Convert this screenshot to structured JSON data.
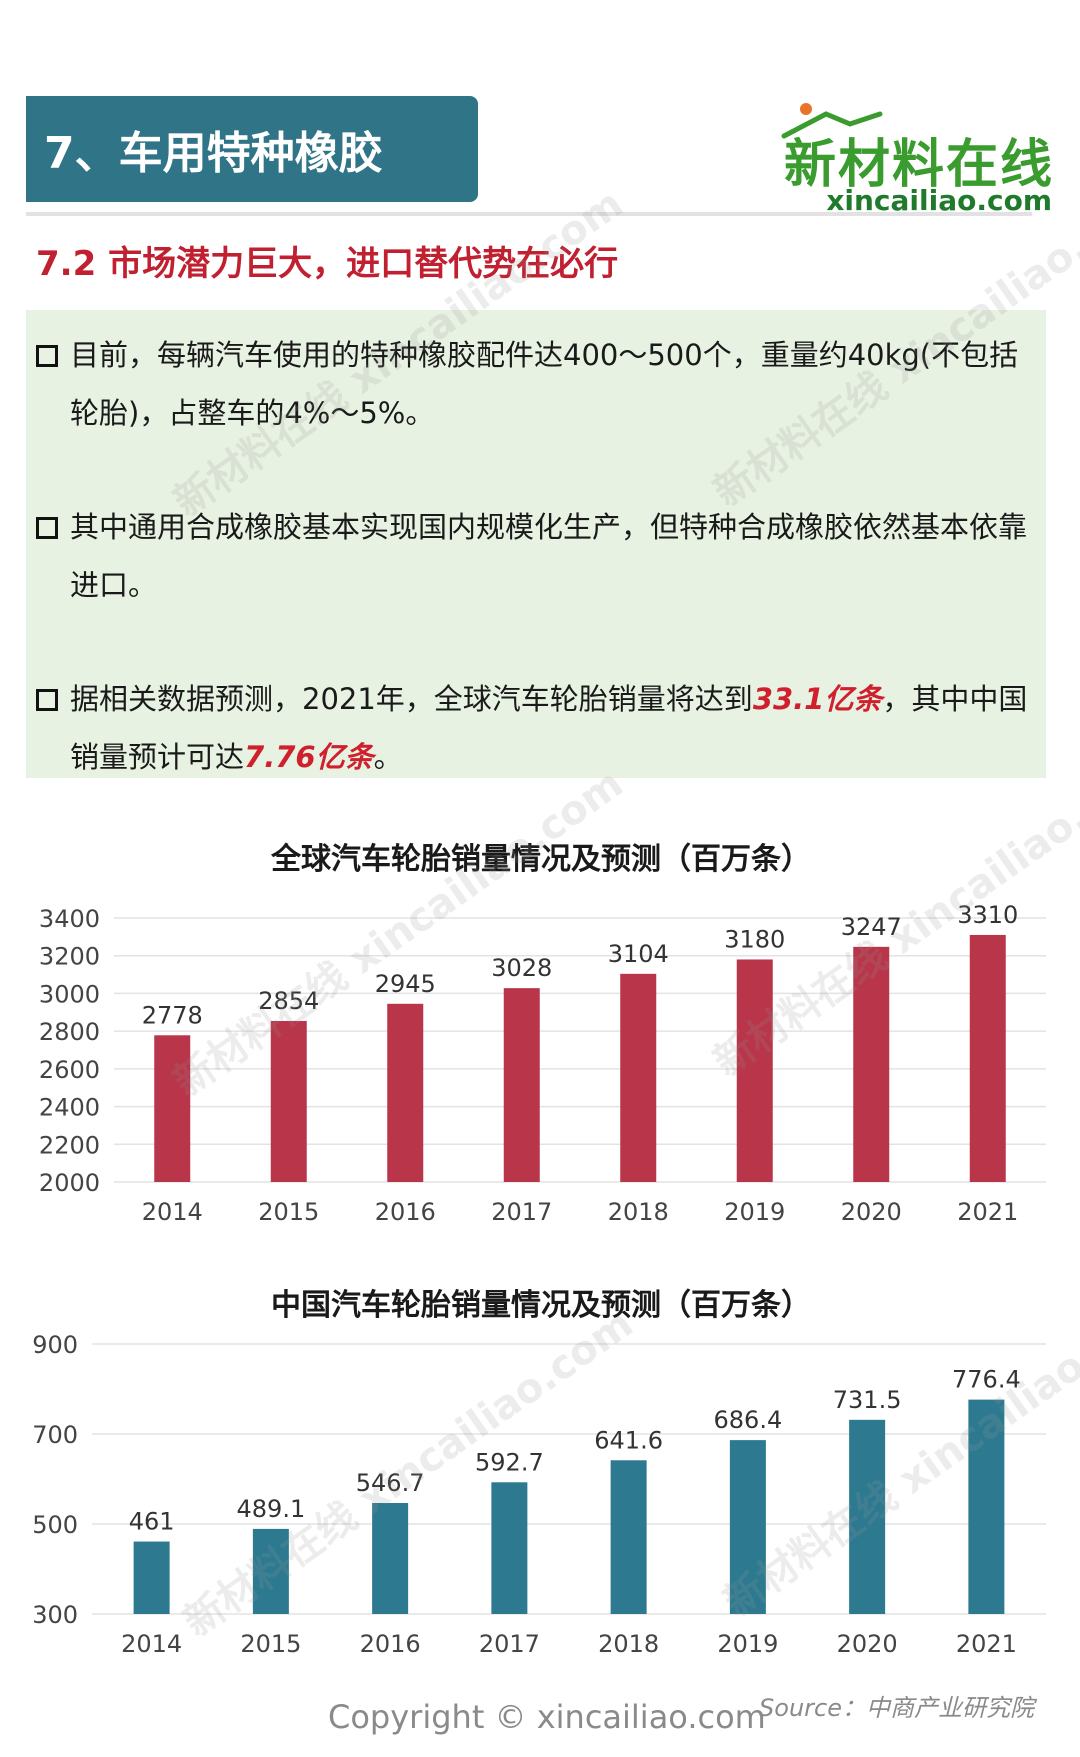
{
  "header": {
    "section_title": "7、车用特种橡胶",
    "logo_main": "新材料在线",
    "logo_sub": "xincailiao.com"
  },
  "subtitle": "7.2 市场潜力巨大，进口替代势在必行",
  "bullets": [
    {
      "parts": [
        "目前，每辆汽车使用的特种橡胶配件达400～500个，重量约40kg(不包括轮胎)，占整车的4%～5%。"
      ]
    },
    {
      "parts": [
        "其中通用合成橡胶基本实现国内规模化生产，但特种合成橡胶依然基本依靠进口。"
      ]
    },
    {
      "pre": "据相关数据预测，2021年，全球汽车轮胎销量将达到",
      "hl1": "33.1亿条",
      "mid": "，其中中国销量预计可达",
      "hl2": "7.76亿条",
      "post": "。"
    }
  ],
  "chart_data": [
    {
      "type": "bar",
      "title": "全球汽车轮胎销量情况及预测（百万条）",
      "categories": [
        "2014",
        "2015",
        "2016",
        "2017",
        "2018",
        "2019",
        "2020",
        "2021"
      ],
      "values": [
        2778,
        2854,
        2945,
        3028,
        3104,
        3180,
        3247,
        3310
      ],
      "value_labels": [
        "2778",
        "2854",
        "2945",
        "3028",
        "3104",
        "3180",
        "3247",
        "3310"
      ],
      "ylim": [
        2000,
        3400
      ],
      "yticks": [
        "2000",
        "2200",
        "2400",
        "2600",
        "2800",
        "3000",
        "3200",
        "3400"
      ],
      "ytick_values": [
        2000,
        2200,
        2400,
        2600,
        2800,
        3000,
        3200,
        3400
      ],
      "color": "#b8354a",
      "grid": true
    },
    {
      "type": "bar",
      "title": "中国汽车轮胎销量情况及预测（百万条）",
      "categories": [
        "2014",
        "2015",
        "2016",
        "2017",
        "2018",
        "2019",
        "2020",
        "2021"
      ],
      "values": [
        461,
        489.1,
        546.7,
        592.7,
        641.6,
        686.4,
        731.5,
        776.4
      ],
      "value_labels": [
        "461",
        "489.1",
        "546.7",
        "592.7",
        "641.6",
        "686.4",
        "731.5",
        "776.4"
      ],
      "ylim": [
        300,
        900
      ],
      "yticks": [
        "300",
        "500",
        "700",
        "900"
      ],
      "ytick_values": [
        300,
        500,
        700,
        900
      ],
      "color": "#2d7a90",
      "grid": true
    }
  ],
  "footer": {
    "copyright": "Copyright © xincailiao.com",
    "source": "Source：中商产业研究院"
  },
  "watermark": "新材料在线 xincailiao.com"
}
